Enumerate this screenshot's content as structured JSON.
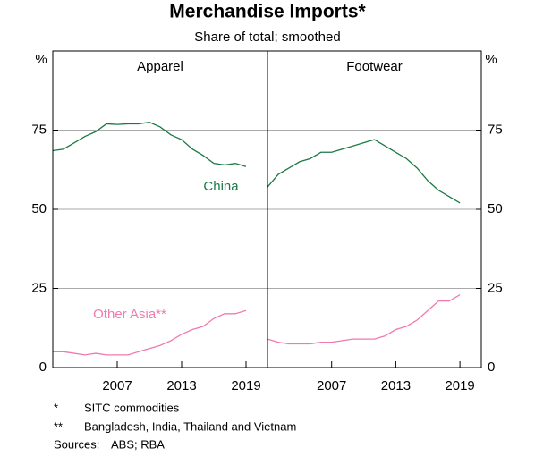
{
  "title": "Merchandise Imports*",
  "subtitle": "Share of total; smoothed",
  "y_unit": "%",
  "chart_data": [
    {
      "type": "line",
      "title": "Apparel",
      "x": [
        2001,
        2002,
        2003,
        2004,
        2005,
        2006,
        2007,
        2008,
        2009,
        2010,
        2011,
        2012,
        2013,
        2014,
        2015,
        2016,
        2017,
        2018,
        2019
      ],
      "series": [
        {
          "name": "China",
          "color": "#1a7a45",
          "values": [
            68.5,
            69,
            71,
            73,
            74.5,
            77,
            76.8,
            77,
            77,
            77.5,
            76,
            73.5,
            72,
            69,
            67,
            64.5,
            64,
            64.5,
            63.5
          ]
        },
        {
          "name": "Other Asia**",
          "color": "#f07ab0",
          "values": [
            5,
            5,
            4.5,
            4,
            4.5,
            4,
            4,
            4,
            5,
            6,
            7,
            8.5,
            10.5,
            12,
            13,
            15.5,
            17,
            17,
            18
          ]
        }
      ],
      "xlim": [
        2001,
        2021
      ],
      "xticks": [
        2007,
        2013,
        2019
      ],
      "ylim": [
        0,
        100
      ],
      "yticks": [
        0,
        25,
        50,
        75
      ],
      "grid": true
    },
    {
      "type": "line",
      "title": "Footwear",
      "x": [
        2001,
        2002,
        2003,
        2004,
        2005,
        2006,
        2007,
        2008,
        2009,
        2010,
        2011,
        2012,
        2013,
        2014,
        2015,
        2016,
        2017,
        2018,
        2019
      ],
      "series": [
        {
          "color": "#1a7a45",
          "values": [
            57,
            61,
            63,
            65,
            66,
            68,
            68,
            69,
            70,
            71,
            72,
            70,
            68,
            66,
            63,
            59,
            56,
            54,
            52
          ]
        },
        {
          "color": "#f07ab0",
          "values": [
            9,
            8,
            7.5,
            7.5,
            7.5,
            8,
            8,
            8.5,
            9,
            9,
            9,
            10,
            12,
            13,
            15,
            18,
            21,
            21,
            23
          ]
        }
      ],
      "xlim": [
        2001,
        2021
      ],
      "xticks": [
        2007,
        2013,
        2019
      ],
      "ylim": [
        0,
        100
      ],
      "yticks": [
        0,
        25,
        50,
        75
      ],
      "grid": true
    }
  ],
  "notes": [
    {
      "mark": "*",
      "text": "SITC commodities"
    },
    {
      "mark": "**",
      "text": "Bangladesh, India, Thailand and Vietnam"
    }
  ],
  "sources": {
    "label": "Sources:",
    "text": "ABS; RBA"
  }
}
